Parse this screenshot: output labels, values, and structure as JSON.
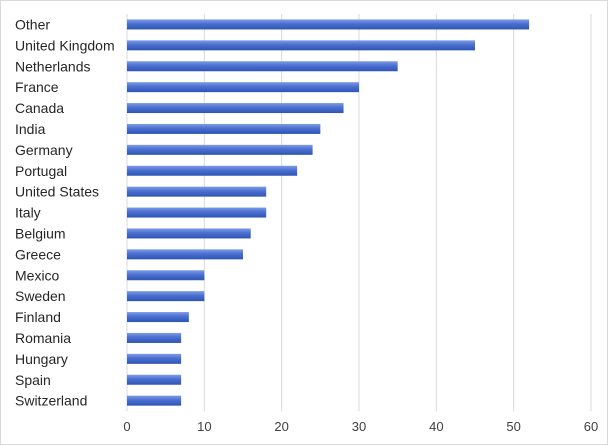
{
  "chart_data": {
    "type": "bar",
    "orientation": "horizontal",
    "title": "",
    "xlabel": "",
    "ylabel": "",
    "categories": [
      "Other",
      "United Kingdom",
      "Netherlands",
      "France",
      "Canada",
      "India",
      "Germany",
      "Portugal",
      "United States",
      "Italy",
      "Belgium",
      "Greece",
      "Mexico",
      "Sweden",
      "Finland",
      "Romania",
      "Hungary",
      "Spain",
      "Switzerland"
    ],
    "values": [
      52,
      45,
      35,
      30,
      28,
      25,
      24,
      22,
      18,
      18,
      16,
      15,
      10,
      10,
      8,
      7,
      7,
      7,
      7
    ],
    "xlim": [
      0,
      60
    ],
    "x_ticks": [
      "0",
      "10",
      "20",
      "30",
      "40",
      "50",
      "60"
    ],
    "grid": true,
    "legend": "none",
    "colors": {
      "bar_dark": "#2f55b4",
      "bar_light": "#7d9be6",
      "gridline": "#d9d9d9",
      "text": "#262626",
      "tick_text": "#404040"
    }
  }
}
